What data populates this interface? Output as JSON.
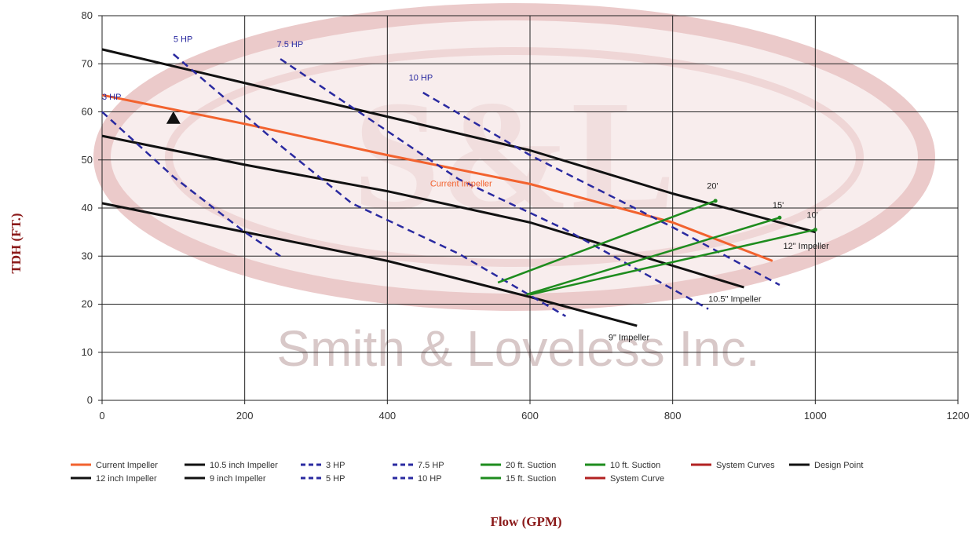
{
  "watermark": {
    "text": "Smith & Loveless Inc.",
    "logo": "S&L"
  },
  "chart_data": {
    "type": "line",
    "xlabel": "Flow (GPM)",
    "ylabel": "TDH (FT.)",
    "xlim": [
      0,
      1200
    ],
    "ylim": [
      0,
      80
    ],
    "xticks": [
      0,
      200,
      400,
      600,
      800,
      1000,
      1200
    ],
    "yticks": [
      0,
      10,
      20,
      30,
      40,
      50,
      60,
      70,
      80
    ],
    "grid": true,
    "legend_position": "bottom",
    "series": [
      {
        "name": "Current Impeller",
        "color": "#f2622e",
        "dash": "solid",
        "width": 3,
        "x": [
          0,
          200,
          400,
          600,
          800,
          940
        ],
        "y": [
          63.5,
          57.5,
          51,
          45,
          37,
          29
        ]
      },
      {
        "name": "12 inch Impeller",
        "color": "#111111",
        "dash": "solid",
        "width": 3,
        "x": [
          0,
          200,
          400,
          600,
          800,
          1000
        ],
        "y": [
          73,
          66,
          59,
          52,
          43,
          35
        ]
      },
      {
        "name": "10.5 inch Impeller",
        "color": "#111111",
        "dash": "solid",
        "width": 3,
        "x": [
          0,
          200,
          400,
          600,
          800,
          900
        ],
        "y": [
          55,
          49,
          43.5,
          37,
          28,
          23.5
        ]
      },
      {
        "name": "9 inch Impeller",
        "color": "#111111",
        "dash": "solid",
        "width": 3,
        "x": [
          0,
          200,
          400,
          600,
          750
        ],
        "y": [
          41,
          35,
          29,
          21.5,
          15.5
        ]
      },
      {
        "name": "3 HP",
        "color": "#2a2aa0",
        "dash": "dashed",
        "width": 2.5,
        "x": [
          0,
          100,
          200,
          250
        ],
        "y": [
          60,
          46.5,
          35,
          30
        ]
      },
      {
        "name": "5 HP",
        "color": "#2a2aa0",
        "dash": "dashed",
        "width": 2.5,
        "x": [
          100,
          250,
          350,
          500,
          650
        ],
        "y": [
          72,
          53,
          41,
          30.5,
          17.5
        ]
      },
      {
        "name": "7.5 HP",
        "color": "#2a2aa0",
        "dash": "dashed",
        "width": 2.5,
        "x": [
          250,
          400,
          500,
          650,
          850
        ],
        "y": [
          71,
          56,
          46,
          35.5,
          19
        ]
      },
      {
        "name": "10 HP",
        "color": "#2a2aa0",
        "dash": "dashed",
        "width": 2.5,
        "x": [
          450,
          600,
          800,
          950
        ],
        "y": [
          64,
          51,
          36,
          24
        ]
      },
      {
        "name": "20 ft. Suction",
        "color": "#1e8c1e",
        "dash": "solid",
        "width": 2.5,
        "x": [
          555,
          860
        ],
        "y": [
          24.5,
          41.5
        ]
      },
      {
        "name": "15 ft. Suction",
        "color": "#1e8c1e",
        "dash": "solid",
        "width": 2.5,
        "x": [
          595,
          950
        ],
        "y": [
          22,
          38
        ]
      },
      {
        "name": "10 ft. Suction",
        "color": "#1e8c1e",
        "dash": "solid",
        "width": 2.5,
        "x": [
          600,
          1000
        ],
        "y": [
          22,
          35.5
        ]
      },
      {
        "name": "System Curve",
        "color": "#b22222",
        "dash": "solid",
        "width": 2.5,
        "x": [],
        "y": []
      },
      {
        "name": "System Curves",
        "color": "#b22222",
        "dash": "solid",
        "width": 2.5,
        "x": [],
        "y": []
      },
      {
        "name": "Design Point",
        "color": "#111111",
        "dash": "solid",
        "width": 2.5,
        "x": [
          100
        ],
        "y": [
          58.5
        ],
        "marker": "triangle"
      }
    ],
    "annotations": [
      {
        "text": "3 HP",
        "x": 0,
        "y": 62.5,
        "color": "#2a2aa0"
      },
      {
        "text": "5 HP",
        "x": 100,
        "y": 74.5,
        "color": "#2a2aa0"
      },
      {
        "text": "7.5 HP",
        "x": 245,
        "y": 73.5,
        "color": "#2a2aa0"
      },
      {
        "text": "10 HP",
        "x": 430,
        "y": 66.5,
        "color": "#2a2aa0"
      },
      {
        "text": "Current Impeller",
        "x": 460,
        "y": 44.5,
        "color": "#f2622e"
      },
      {
        "text": "20'",
        "x": 848,
        "y": 44,
        "color": "#222222"
      },
      {
        "text": "15'",
        "x": 940,
        "y": 40,
        "color": "#222222"
      },
      {
        "text": "10'",
        "x": 988,
        "y": 38,
        "color": "#222222"
      },
      {
        "text": "12\" Impeller",
        "x": 955,
        "y": 31.5,
        "color": "#222222"
      },
      {
        "text": "10.5\" Impeller",
        "x": 850,
        "y": 20.5,
        "color": "#222222"
      },
      {
        "text": "9\" Impeller",
        "x": 710,
        "y": 12.5,
        "color": "#222222"
      }
    ],
    "legend": [
      {
        "label": "Current Impeller",
        "color": "#f2622e",
        "dash": "solid"
      },
      {
        "label": "10.5 inch Impeller",
        "color": "#111111",
        "dash": "solid"
      },
      {
        "label": "3 HP",
        "color": "#2a2aa0",
        "dash": "dashed"
      },
      {
        "label": "7.5 HP",
        "color": "#2a2aa0",
        "dash": "dashed"
      },
      {
        "label": "20 ft. Suction",
        "color": "#1e8c1e",
        "dash": "solid"
      },
      {
        "label": "10 ft. Suction",
        "color": "#1e8c1e",
        "dash": "solid"
      },
      {
        "label": "System Curves",
        "color": "#b22222",
        "dash": "solid"
      },
      {
        "label": "Design Point",
        "color": "#111111",
        "dash": "solid"
      },
      {
        "label": "12 inch Impeller",
        "color": "#111111",
        "dash": "solid"
      },
      {
        "label": "9 inch Impeller",
        "color": "#111111",
        "dash": "solid"
      },
      {
        "label": "5 HP",
        "color": "#2a2aa0",
        "dash": "dashed"
      },
      {
        "label": "10 HP",
        "color": "#2a2aa0",
        "dash": "dashed"
      },
      {
        "label": "15 ft. Suction",
        "color": "#1e8c1e",
        "dash": "solid"
      },
      {
        "label": "System Curve",
        "color": "#b22222",
        "dash": "solid"
      }
    ]
  }
}
